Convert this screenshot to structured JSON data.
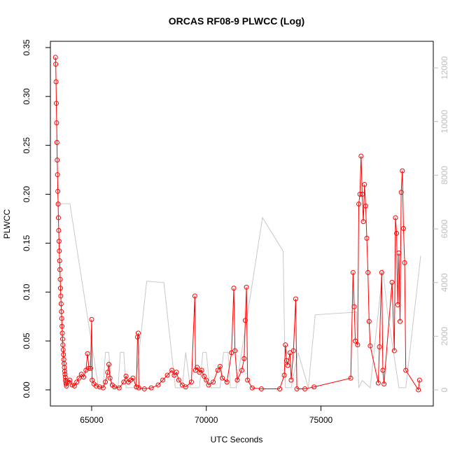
{
  "chart_data": {
    "type": "line",
    "title": "ORCAS RF08-9 PLWCC (Log)",
    "xlabel": "UTC Seconds",
    "ylabel": "PLWCC",
    "xlim": [
      63200,
      79900
    ],
    "xticks": [
      65000,
      70000,
      75000
    ],
    "ylim": [
      -0.0165,
      0.3564
    ],
    "yticks": [
      {
        "value": 0,
        "label": "0.00"
      },
      0.05,
      {
        "value": 0.1,
        "label": "0.10"
      },
      0.15,
      {
        "value": 0.2,
        "label": "0.20"
      },
      0.25,
      {
        "value": 0.3,
        "label": "0.30"
      },
      0.35
    ],
    "y2lim": [
      -600,
      12991
    ],
    "y2ticks": [
      0,
      2000,
      4000,
      6000,
      8000,
      10000,
      12000
    ],
    "y2color": "#bfbfbf",
    "series": [
      {
        "color": "#c8c8c8",
        "axis": "y2",
        "marker": "none",
        "x": [
          63450,
          64050,
          65300,
          65500,
          65600,
          65750,
          65850,
          66150,
          66250,
          66400,
          66500,
          66900,
          67400,
          68150,
          68650,
          68950,
          69100,
          69300,
          69700,
          69850,
          70000,
          70150,
          70600,
          70750,
          70950,
          71050,
          71300,
          72450,
          73350,
          73450,
          73700,
          74000,
          74450,
          74750,
          76550,
          76650,
          76800,
          77150,
          77700,
          77900,
          78400,
          78700,
          79350
        ],
        "values": [
          6940,
          6940,
          80,
          80,
          1400,
          1400,
          80,
          80,
          1400,
          1400,
          80,
          80,
          4050,
          4000,
          80,
          80,
          1400,
          80,
          80,
          1400,
          1400,
          80,
          80,
          1400,
          1400,
          80,
          80,
          6420,
          5170,
          80,
          80,
          1400,
          80,
          2800,
          2900,
          80,
          350,
          80,
          4500,
          2900,
          80,
          80,
          5000
        ]
      },
      {
        "color": "#ff0000",
        "marker": "circle",
        "x": [
          63420,
          63433,
          63446,
          63459,
          63472,
          63485,
          63498,
          63511,
          63524,
          63537,
          63550,
          63563,
          63576,
          63589,
          63602,
          63615,
          63628,
          63641,
          63654,
          63667,
          63680,
          63693,
          63706,
          63719,
          63732,
          63745,
          63758,
          63771,
          63784,
          63797,
          63810,
          63823,
          63836,
          63849,
          63862,
          63875,
          63888,
          63901,
          63950,
          64050,
          64150,
          64250,
          64350,
          64450,
          64550,
          64650,
          64750,
          64820,
          64880,
          64950,
          65000,
          65020,
          65100,
          65200,
          65350,
          65500,
          65600,
          65700,
          65750,
          65800,
          65900,
          66000,
          66200,
          66400,
          66500,
          66600,
          66700,
          66800,
          66950,
          67000,
          67030,
          67060,
          67300,
          67600,
          67900,
          68100,
          68300,
          68500,
          68600,
          68700,
          68800,
          68950,
          69100,
          69350,
          69500,
          69530,
          69600,
          69700,
          69800,
          69900,
          70000,
          70100,
          70300,
          70500,
          70600,
          70700,
          70900,
          71100,
          71200,
          71250,
          71350,
          71550,
          71650,
          71700,
          71750,
          71800,
          72000,
          72400,
          73200,
          73400,
          73450,
          73500,
          73550,
          73650,
          73700,
          73800,
          73900,
          73950,
          74300,
          74700,
          76300,
          76400,
          76450,
          76500,
          76600,
          76650,
          76700,
          76750,
          76800,
          76850,
          76900,
          76950,
          77000,
          77050,
          77100,
          77150,
          77500,
          77550,
          77650,
          77700,
          77750,
          78100,
          78200,
          78250,
          78300,
          78350,
          78400,
          78450,
          78500,
          78550,
          78600,
          78650,
          78700,
          79250,
          79300
        ],
        "values": [
          0.34,
          0.333,
          0.315,
          0.293,
          0.273,
          0.253,
          0.235,
          0.22,
          0.203,
          0.19,
          0.176,
          0.163,
          0.152,
          0.142,
          0.132,
          0.123,
          0.113,
          0.104,
          0.096,
          0.088,
          0.08,
          0.073,
          0.065,
          0.058,
          0.052,
          0.046,
          0.041,
          0.036,
          0.031,
          0.027,
          0.023,
          0.019,
          0.016,
          0.013,
          0.01,
          0.008,
          0.006,
          0.004,
          0.008,
          0.01,
          0.005,
          0.004,
          0.008,
          0.012,
          0.016,
          0.013,
          0.02,
          0.037,
          0.022,
          0.022,
          0.072,
          0.01,
          0.006,
          0.004,
          0.003,
          0.002,
          0.008,
          0.018,
          0.026,
          0.012,
          0.005,
          0.003,
          0.002,
          0.008,
          0.014,
          0.008,
          0.01,
          0.012,
          0.003,
          0.054,
          0.058,
          0.002,
          0.001,
          0.002,
          0.005,
          0.01,
          0.015,
          0.02,
          0.015,
          0.018,
          0.01,
          0.005,
          0.003,
          0.008,
          0.096,
          0.02,
          0.023,
          0.018,
          0.02,
          0.014,
          0.01,
          0.005,
          0.008,
          0.02,
          0.024,
          0.012,
          0.008,
          0.038,
          0.104,
          0.04,
          0.01,
          0.02,
          0.032,
          0.071,
          0.105,
          0.01,
          0.002,
          0.001,
          0.001,
          0.015,
          0.046,
          0.03,
          0.025,
          0.038,
          0.01,
          0.04,
          0.093,
          0.001,
          0.001,
          0.003,
          0.012,
          0.12,
          0.085,
          0.05,
          0.046,
          0.19,
          0.2,
          0.239,
          0.2,
          0.172,
          0.21,
          0.188,
          0.155,
          0.12,
          0.07,
          0.045,
          0.007,
          0.044,
          0.12,
          0.02,
          0.006,
          0.11,
          0.04,
          0.176,
          0.16,
          0.087,
          0.14,
          0.07,
          0.202,
          0.224,
          0.165,
          0.13,
          0.02,
          0.0,
          0.01
        ]
      }
    ]
  }
}
